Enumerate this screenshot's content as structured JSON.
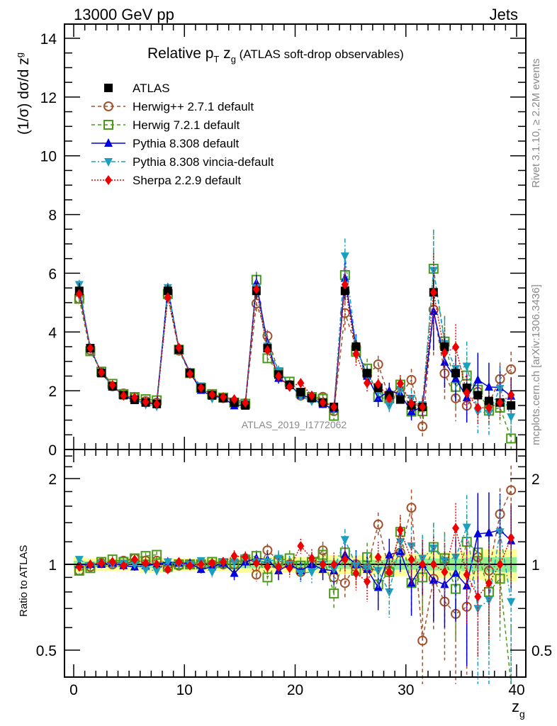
{
  "header": {
    "left_label": "13000 GeV pp",
    "right_label": "Jets"
  },
  "side_labels": {
    "upper": "Rivet 3.1.10, ≥ 2.2M events",
    "lower": "mcplots.cern.ch [arXiv:1306.3436]"
  },
  "chart_data": [
    {
      "type": "line",
      "panel": "main",
      "title_main": "Relative p",
      "title_sub_T": "T",
      "title_z": " z",
      "title_sub_g": "g",
      "title_tail": " (ATLAS soft-drop observables)",
      "ylabel": "(1/σ) dσ/d z",
      "ylabel_sub": "g",
      "xlabel": "z",
      "xlabel_sub": "g",
      "watermark": "ATLAS_2019_I1772062",
      "xlim": [
        -1,
        41
      ],
      "ylim": [
        0,
        14.5
      ],
      "yticks": [
        0,
        2,
        4,
        6,
        8,
        10,
        12,
        14
      ],
      "xticks": [
        0,
        10,
        20,
        30,
        40
      ],
      "legend_position": "top-left",
      "x": [
        0.5,
        1.5,
        2.5,
        3.5,
        4.5,
        5.5,
        6.5,
        7.5,
        8.5,
        9.5,
        10.5,
        11.5,
        12.5,
        13.5,
        14.5,
        15.5,
        16.5,
        17.5,
        18.5,
        19.5,
        20.5,
        21.5,
        22.5,
        23.5,
        24.5,
        25.5,
        26.5,
        27.5,
        28.5,
        29.5,
        30.5,
        31.5,
        32.5,
        33.5,
        34.5,
        35.5,
        36.5,
        37.5,
        38.5,
        39.5
      ],
      "data": {
        "name": "ATLAS",
        "color": "#000000",
        "marker": "square",
        "values": [
          5.4,
          3.45,
          2.6,
          2.15,
          1.85,
          1.7,
          1.6,
          1.55,
          5.4,
          3.4,
          2.6,
          2.1,
          1.85,
          1.75,
          1.6,
          1.5,
          5.4,
          3.45,
          2.55,
          2.2,
          1.95,
          1.75,
          1.6,
          1.45,
          5.4,
          3.5,
          2.6,
          2.1,
          1.85,
          1.7,
          1.5,
          1.45,
          5.35,
          3.5,
          2.6,
          2.1,
          1.85,
          1.65,
          1.6,
          1.5
        ],
        "rel_error": [
          0.05,
          0.04,
          0.04,
          0.04,
          0.04,
          0.04,
          0.05,
          0.05,
          0.04,
          0.04,
          0.04,
          0.04,
          0.04,
          0.04,
          0.05,
          0.05,
          0.05,
          0.05,
          0.05,
          0.05,
          0.05,
          0.05,
          0.06,
          0.06,
          0.06,
          0.06,
          0.06,
          0.06,
          0.07,
          0.07,
          0.07,
          0.08,
          0.08,
          0.08,
          0.08,
          0.09,
          0.09,
          0.1,
          0.1,
          0.1
        ]
      },
      "series": [
        {
          "name": "Herwig++ 2.7.1 default",
          "color": "#a0522d",
          "marker": "open-circle",
          "dash": "dashed",
          "ratio": [
            0.95,
            0.98,
            1.01,
            1.0,
            1.03,
            1.05,
            1.03,
            1.03,
            0.97,
            0.99,
            1.0,
            1.0,
            1.0,
            1.0,
            1.0,
            1.05,
            0.92,
            1.12,
            1.03,
            1.0,
            0.94,
            1.0,
            1.12,
            0.9,
            0.86,
            1.0,
            0.97,
            1.38,
            0.95,
            1.1,
            1.58,
            0.54,
            0.89,
            0.74,
            0.67,
            0.71,
            1.06,
            0.95,
            1.5,
            1.82
          ],
          "ratio_err": [
            0.03,
            0.03,
            0.03,
            0.03,
            0.03,
            0.03,
            0.03,
            0.03,
            0.03,
            0.03,
            0.03,
            0.03,
            0.04,
            0.04,
            0.05,
            0.05,
            0.05,
            0.06,
            0.07,
            0.07,
            0.07,
            0.08,
            0.08,
            0.1,
            0.11,
            0.12,
            0.13,
            0.14,
            0.15,
            0.17,
            0.25,
            0.3,
            0.3,
            0.28,
            0.3,
            0.3,
            0.3,
            0.32,
            0.35,
            0.4
          ]
        },
        {
          "name": "Herwig 7.2.1 default",
          "color": "#4a9a1a",
          "marker": "open-square",
          "dash": "dashed",
          "ratio": [
            0.95,
            0.97,
            1.02,
            1.04,
            1.02,
            1.05,
            1.07,
            1.08,
            0.98,
            1.0,
            1.0,
            1.0,
            1.02,
            1.01,
            1.0,
            1.04,
            1.07,
            0.9,
            1.03,
            1.05,
            0.99,
            1.02,
            1.08,
            0.79,
            1.1,
            0.95,
            1.06,
            0.85,
            0.94,
            1.3,
            0.86,
            0.9,
            1.15,
            1.05,
            0.82,
            1.2,
            1.1,
            0.8,
            0.89,
            0.25
          ],
          "ratio_err": [
            0.03,
            0.03,
            0.03,
            0.03,
            0.03,
            0.03,
            0.03,
            0.03,
            0.03,
            0.03,
            0.03,
            0.03,
            0.04,
            0.04,
            0.05,
            0.05,
            0.05,
            0.06,
            0.07,
            0.07,
            0.07,
            0.08,
            0.08,
            0.1,
            0.11,
            0.12,
            0.13,
            0.14,
            0.15,
            0.17,
            0.2,
            0.22,
            0.25,
            0.25,
            0.28,
            0.3,
            0.3,
            0.32,
            0.35,
            0.4
          ]
        },
        {
          "name": "Pythia 8.308 default",
          "color": "#0000dd",
          "marker": "triangle-up",
          "dash": "solid",
          "ratio": [
            1.0,
            1.0,
            1.0,
            1.01,
            0.99,
            0.98,
            0.99,
            1.0,
            1.02,
            1.01,
            1.01,
            0.96,
            0.98,
            1.01,
            0.93,
            1.02,
            1.05,
            1.04,
            0.95,
            1.0,
            0.95,
            1.0,
            0.96,
            0.95,
            1.08,
            1.0,
            0.96,
            0.83,
            1.08,
            1.11,
            0.86,
            1.0,
            0.88,
            0.85,
            0.93,
            0.84,
            1.28,
            1.29,
            1.32,
            1.21
          ],
          "ratio_err": [
            0.03,
            0.03,
            0.03,
            0.03,
            0.03,
            0.03,
            0.03,
            0.03,
            0.03,
            0.03,
            0.03,
            0.03,
            0.04,
            0.04,
            0.05,
            0.05,
            0.05,
            0.06,
            0.07,
            0.07,
            0.07,
            0.08,
            0.08,
            0.1,
            0.11,
            0.12,
            0.13,
            0.14,
            0.15,
            0.17,
            0.2,
            0.22,
            0.25,
            0.25,
            0.3,
            0.4,
            0.5,
            0.5,
            0.45,
            0.4
          ]
        },
        {
          "name": "Pythia 8.308 vincia-default",
          "color": "#1a9fc0",
          "marker": "triangle-down",
          "dash": "dashdot",
          "ratio": [
            1.04,
            0.99,
            1.01,
            1.0,
            1.01,
            1.0,
            0.96,
            0.95,
            1.02,
            1.0,
            1.0,
            1.03,
            0.94,
            1.02,
            1.02,
            1.05,
            1.02,
            1.02,
            1.05,
            1.0,
            0.93,
            0.94,
            1.0,
            0.96,
            1.22,
            0.99,
            0.97,
            0.95,
            0.8,
            1.2,
            1.16,
            1.05,
            1.14,
            1.03,
            1.06,
            1.35,
            0.7,
            0.75,
            1.3,
            0.74
          ],
          "ratio_err": [
            0.03,
            0.03,
            0.03,
            0.03,
            0.03,
            0.03,
            0.03,
            0.03,
            0.03,
            0.03,
            0.03,
            0.03,
            0.04,
            0.04,
            0.05,
            0.05,
            0.05,
            0.06,
            0.07,
            0.07,
            0.07,
            0.08,
            0.08,
            0.1,
            0.11,
            0.12,
            0.13,
            0.14,
            0.15,
            0.17,
            0.2,
            0.22,
            0.25,
            0.25,
            0.3,
            0.4,
            0.4,
            0.45,
            0.45,
            0.4
          ]
        },
        {
          "name": "Sherpa 2.2.9 default",
          "color": "#ee0000",
          "marker": "diamond",
          "dash": "dotted",
          "ratio": [
            0.98,
            1.0,
            1.01,
            1.02,
            0.99,
            1.04,
            1.01,
            1.0,
            0.96,
            1.02,
            0.99,
            1.0,
            1.01,
            1.02,
            1.07,
            1.06,
            1.01,
            0.98,
            0.98,
            0.97,
            1.16,
            1.05,
            1.0,
            1.0,
            1.04,
            0.93,
            0.87,
            1.06,
            0.94,
            1.32,
            1.04,
            1.0,
            1.0,
            0.94,
            1.34,
            0.92,
            0.77,
            0.86,
            1.0,
            1.24
          ],
          "ratio_err": [
            0.03,
            0.03,
            0.03,
            0.03,
            0.03,
            0.03,
            0.03,
            0.03,
            0.03,
            0.03,
            0.03,
            0.03,
            0.04,
            0.04,
            0.05,
            0.05,
            0.05,
            0.06,
            0.07,
            0.07,
            0.07,
            0.08,
            0.08,
            0.1,
            0.11,
            0.12,
            0.13,
            0.14,
            0.15,
            0.17,
            0.2,
            0.22,
            0.25,
            0.25,
            0.3,
            0.3,
            0.3,
            0.32,
            0.35,
            0.4
          ]
        }
      ]
    },
    {
      "type": "line",
      "panel": "ratio",
      "ylabel": "Ratio to ATLAS",
      "scale": "log",
      "ylim": [
        0.4,
        2.4
      ],
      "yticks": [
        0.5,
        1,
        2
      ],
      "ytick_labels": [
        "0.5",
        "1",
        "2"
      ],
      "xticks": [
        0,
        10,
        20,
        30,
        40
      ],
      "xtick_labels": [
        "0",
        "10",
        "20",
        "30",
        "40"
      ],
      "band_colors": {
        "stat": "#90ee90",
        "total": "#ffff99"
      }
    }
  ]
}
